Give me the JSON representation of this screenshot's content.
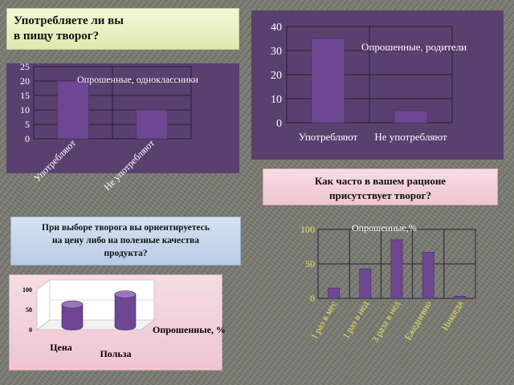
{
  "question_main": [
    "Употребляете ли вы",
    "в пищу творог?"
  ],
  "question_frequency": [
    "Как часто в вашем рационе",
    "присутствует творог?"
  ],
  "question_choice": [
    "При выборе творога вы ориентируетесь",
    "на цену либо на полезные качества",
    "продукта?"
  ],
  "colors": {
    "bar": "#6e4693",
    "panel": "#59406f",
    "text_white": "#ffffff"
  },
  "chart_data": [
    {
      "type": "bar",
      "title": "",
      "series": [
        {
          "name": "Опрошенные, родители",
          "values": [
            35,
            5
          ]
        }
      ],
      "categories": [
        "Употребляют",
        "Не употребляют"
      ],
      "ylim": [
        0,
        40
      ],
      "yticks": [
        "0",
        "10",
        "20",
        "30",
        "40"
      ],
      "legend": "top-right"
    },
    {
      "type": "bar",
      "title": "",
      "series": [
        {
          "name": "Опрошенные, одноклассники",
          "values": [
            20,
            10
          ]
        }
      ],
      "categories": [
        "Употребляют",
        "Не употребляют"
      ],
      "ylim": [
        0,
        25
      ],
      "yticks": [
        "0",
        "5",
        "10",
        "15",
        "20",
        "25"
      ],
      "legend": "top-right"
    },
    {
      "type": "bar",
      "title": "",
      "series": [
        {
          "name": "Опрошенные,%",
          "values": [
            15,
            43,
            85,
            67,
            3
          ]
        }
      ],
      "categories": [
        "1 раз в мес",
        "1 раз в нед",
        "3 раза в нед",
        "Ежедневно",
        "Никогда"
      ],
      "ylim": [
        0,
        100
      ],
      "yticks": [
        "0",
        "50",
        "100"
      ],
      "legend": "top"
    },
    {
      "type": "bar",
      "title": "",
      "series": [
        {
          "name": "Опрошенные, %",
          "values": [
            55,
            80
          ]
        }
      ],
      "categories": [
        "Цена",
        "Польза"
      ],
      "ylim": [
        0,
        100
      ],
      "yticks": [
        "0",
        "50",
        "100"
      ],
      "legend": "right"
    }
  ]
}
